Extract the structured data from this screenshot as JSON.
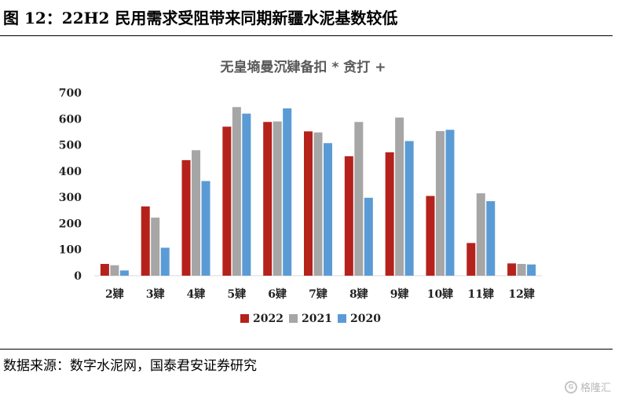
{
  "header": {
    "figure_title": "图 12：22H2 民用需求受阻带来同期新疆水泥基数较低"
  },
  "source_note": "数据来源：数字水泥网，国泰君安证券研究",
  "watermark": {
    "text": "格隆汇"
  },
  "colors": {
    "series_2022": "#b5221c",
    "series_2021": "#a6a6a6",
    "series_2020": "#5b9bd5",
    "chart_title": "#595959",
    "axis_text": "#404040",
    "axis_line": "#d9d9d9"
  },
  "chart_data": {
    "type": "bar",
    "title": "无皇墒曼沉肄备扣 * 贪打 +",
    "xlabel": "",
    "ylabel": "",
    "ylim": [
      0,
      700
    ],
    "yticks": [
      0,
      100,
      200,
      300,
      400,
      500,
      600,
      700
    ],
    "categories": [
      "2肄",
      "3肄",
      "4肄",
      "5肄",
      "6肄",
      "7肄",
      "8肄",
      "9肄",
      "10肄",
      "11肄",
      "12肄"
    ],
    "series": [
      {
        "name": "2022",
        "values": [
          45,
          265,
          442,
          570,
          588,
          552,
          457,
          472,
          305,
          125,
          47
        ]
      },
      {
        "name": "2021",
        "values": [
          40,
          222,
          480,
          645,
          590,
          548,
          588,
          605,
          553,
          315,
          45
        ]
      },
      {
        "name": "2020",
        "values": [
          20,
          107,
          362,
          620,
          640,
          507,
          298,
          515,
          558,
          285,
          43
        ]
      }
    ],
    "legend": "bottom",
    "grid": false
  }
}
